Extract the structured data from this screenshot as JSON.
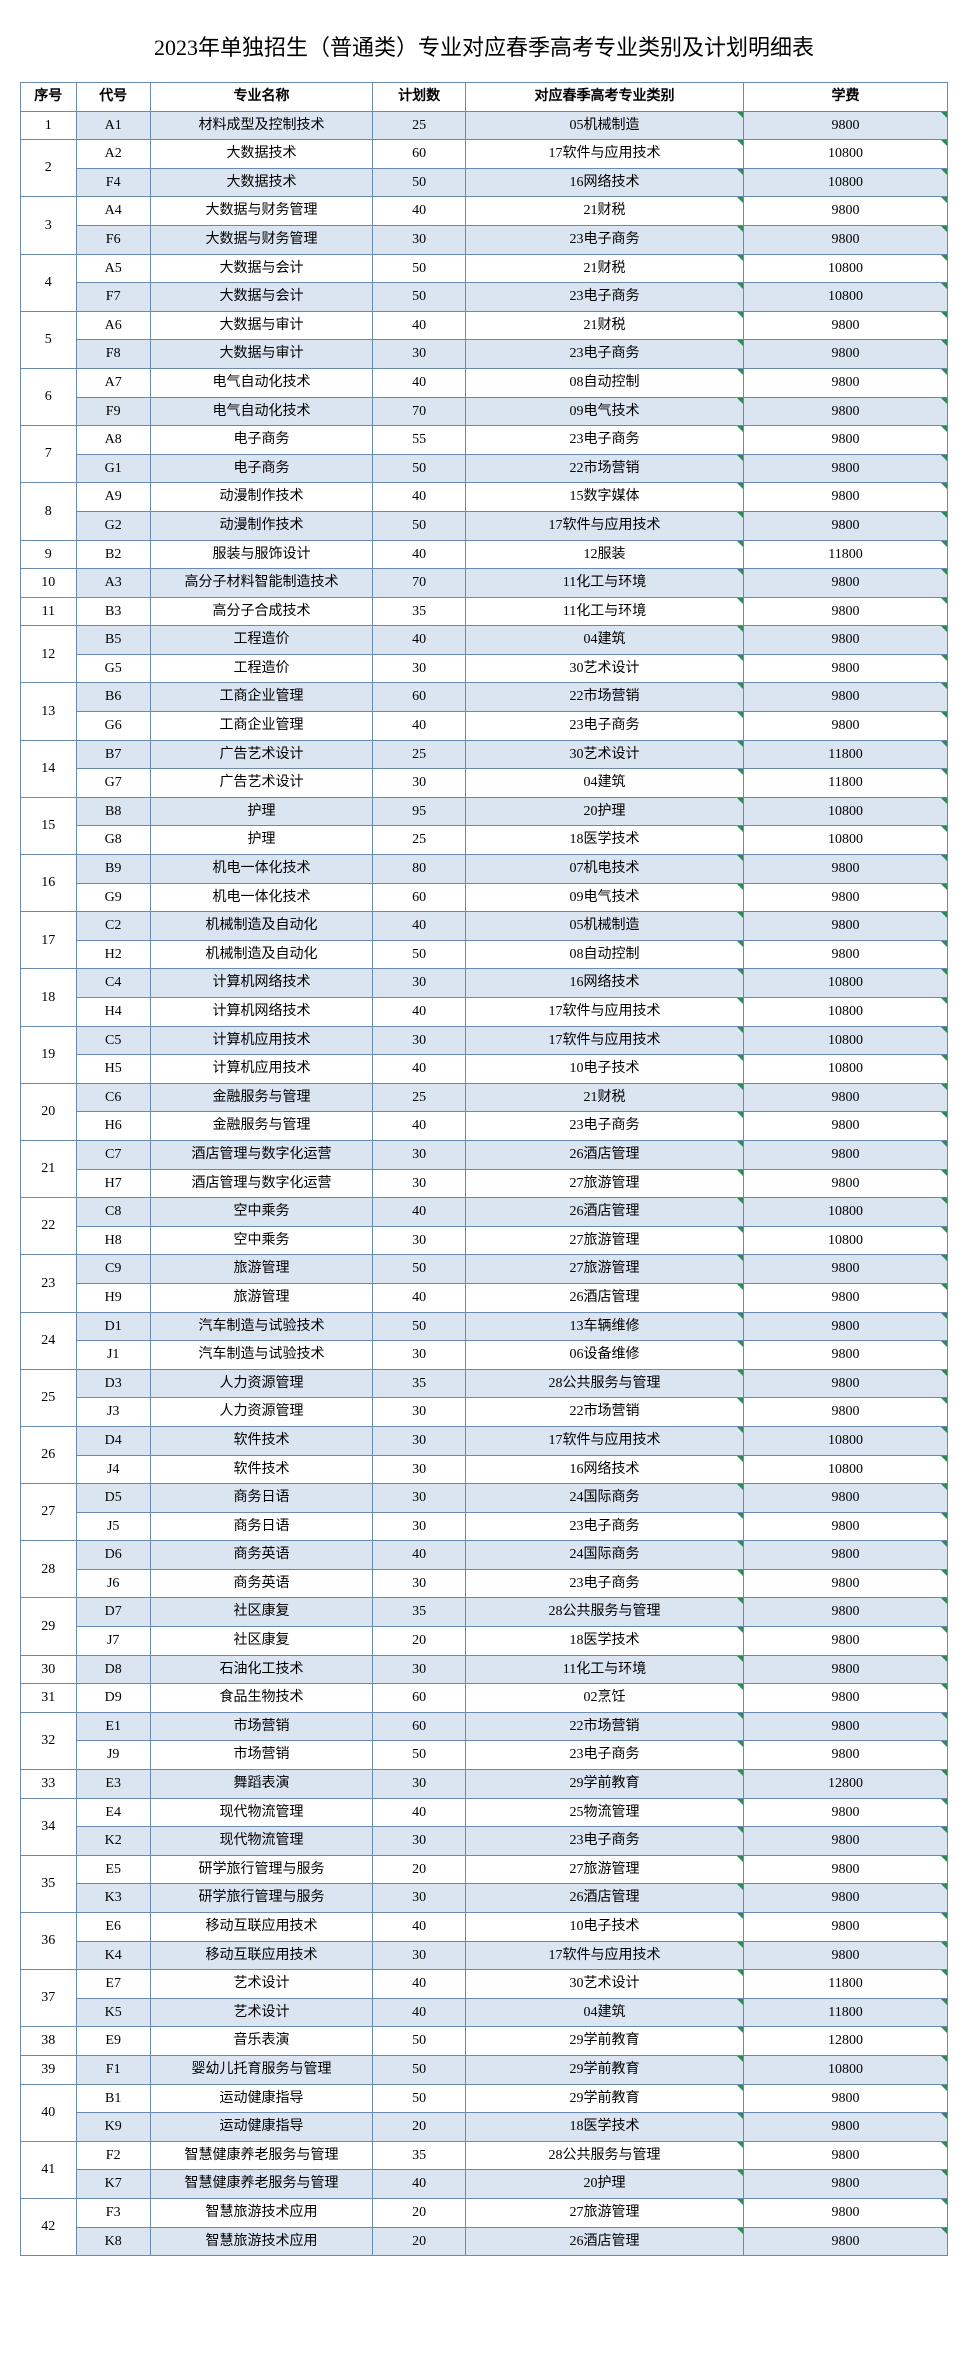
{
  "title": "2023年单独招生（普通类）专业对应春季高考专业类别及计划明细表",
  "columns": [
    "序号",
    "代号",
    "专业名称",
    "计划数",
    "对应春季高考专业类别",
    "学费"
  ],
  "rows": [
    {
      "seq": "1",
      "seqSpan": 1,
      "code": "A1",
      "name": "材料成型及控制技术",
      "plan": "25",
      "cat": "05机械制造",
      "fee": "9800",
      "blue": true
    },
    {
      "seq": "2",
      "seqSpan": 2,
      "code": "A2",
      "name": "大数据技术",
      "plan": "60",
      "cat": "17软件与应用技术",
      "fee": "10800",
      "blue": false
    },
    {
      "code": "F4",
      "name": "大数据技术",
      "plan": "50",
      "cat": "16网络技术",
      "fee": "10800",
      "blue": true
    },
    {
      "seq": "3",
      "seqSpan": 2,
      "code": "A4",
      "name": "大数据与财务管理",
      "plan": "40",
      "cat": "21财税",
      "fee": "9800",
      "blue": false
    },
    {
      "code": "F6",
      "name": "大数据与财务管理",
      "plan": "30",
      "cat": "23电子商务",
      "fee": "9800",
      "blue": true
    },
    {
      "seq": "4",
      "seqSpan": 2,
      "code": "A5",
      "name": "大数据与会计",
      "plan": "50",
      "cat": "21财税",
      "fee": "10800",
      "blue": false
    },
    {
      "code": "F7",
      "name": "大数据与会计",
      "plan": "50",
      "cat": "23电子商务",
      "fee": "10800",
      "blue": true
    },
    {
      "seq": "5",
      "seqSpan": 2,
      "code": "A6",
      "name": "大数据与审计",
      "plan": "40",
      "cat": "21财税",
      "fee": "9800",
      "blue": false
    },
    {
      "code": "F8",
      "name": "大数据与审计",
      "plan": "30",
      "cat": "23电子商务",
      "fee": "9800",
      "blue": true
    },
    {
      "seq": "6",
      "seqSpan": 2,
      "code": "A7",
      "name": "电气自动化技术",
      "plan": "40",
      "cat": "08自动控制",
      "fee": "9800",
      "blue": false
    },
    {
      "code": "F9",
      "name": "电气自动化技术",
      "plan": "70",
      "cat": "09电气技术",
      "fee": "9800",
      "blue": true
    },
    {
      "seq": "7",
      "seqSpan": 2,
      "code": "A8",
      "name": "电子商务",
      "plan": "55",
      "cat": "23电子商务",
      "fee": "9800",
      "blue": false
    },
    {
      "code": "G1",
      "name": "电子商务",
      "plan": "50",
      "cat": "22市场营销",
      "fee": "9800",
      "blue": true
    },
    {
      "seq": "8",
      "seqSpan": 2,
      "code": "A9",
      "name": "动漫制作技术",
      "plan": "40",
      "cat": "15数字媒体",
      "fee": "9800",
      "blue": false
    },
    {
      "code": "G2",
      "name": "动漫制作技术",
      "plan": "50",
      "cat": "17软件与应用技术",
      "fee": "9800",
      "blue": true
    },
    {
      "seq": "9",
      "seqSpan": 1,
      "code": "B2",
      "name": "服装与服饰设计",
      "plan": "40",
      "cat": "12服装",
      "fee": "11800",
      "blue": false
    },
    {
      "seq": "10",
      "seqSpan": 1,
      "code": "A3",
      "name": "高分子材料智能制造技术",
      "plan": "70",
      "cat": "11化工与环境",
      "fee": "9800",
      "blue": true
    },
    {
      "seq": "11",
      "seqSpan": 1,
      "code": "B3",
      "name": "高分子合成技术",
      "plan": "35",
      "cat": "11化工与环境",
      "fee": "9800",
      "blue": false
    },
    {
      "seq": "12",
      "seqSpan": 2,
      "code": "B5",
      "name": "工程造价",
      "plan": "40",
      "cat": "04建筑",
      "fee": "9800",
      "blue": true
    },
    {
      "code": "G5",
      "name": "工程造价",
      "plan": "30",
      "cat": "30艺术设计",
      "fee": "9800",
      "blue": false
    },
    {
      "seq": "13",
      "seqSpan": 2,
      "code": "B6",
      "name": "工商企业管理",
      "plan": "60",
      "cat": "22市场营销",
      "fee": "9800",
      "blue": true
    },
    {
      "code": "G6",
      "name": "工商企业管理",
      "plan": "40",
      "cat": "23电子商务",
      "fee": "9800",
      "blue": false
    },
    {
      "seq": "14",
      "seqSpan": 2,
      "code": "B7",
      "name": "广告艺术设计",
      "plan": "25",
      "cat": "30艺术设计",
      "fee": "11800",
      "blue": true
    },
    {
      "code": "G7",
      "name": "广告艺术设计",
      "plan": "30",
      "cat": "04建筑",
      "fee": "11800",
      "blue": false
    },
    {
      "seq": "15",
      "seqSpan": 2,
      "code": "B8",
      "name": "护理",
      "plan": "95",
      "cat": "20护理",
      "fee": "10800",
      "blue": true
    },
    {
      "code": "G8",
      "name": "护理",
      "plan": "25",
      "cat": "18医学技术",
      "fee": "10800",
      "blue": false
    },
    {
      "seq": "16",
      "seqSpan": 2,
      "code": "B9",
      "name": "机电一体化技术",
      "plan": "80",
      "cat": "07机电技术",
      "fee": "9800",
      "blue": true
    },
    {
      "code": "G9",
      "name": "机电一体化技术",
      "plan": "60",
      "cat": "09电气技术",
      "fee": "9800",
      "blue": false
    },
    {
      "seq": "17",
      "seqSpan": 2,
      "code": "C2",
      "name": "机械制造及自动化",
      "plan": "40",
      "cat": "05机械制造",
      "fee": "9800",
      "blue": true
    },
    {
      "code": "H2",
      "name": "机械制造及自动化",
      "plan": "50",
      "cat": "08自动控制",
      "fee": "9800",
      "blue": false
    },
    {
      "seq": "18",
      "seqSpan": 2,
      "code": "C4",
      "name": "计算机网络技术",
      "plan": "30",
      "cat": "16网络技术",
      "fee": "10800",
      "blue": true
    },
    {
      "code": "H4",
      "name": "计算机网络技术",
      "plan": "40",
      "cat": "17软件与应用技术",
      "fee": "10800",
      "blue": false
    },
    {
      "seq": "19",
      "seqSpan": 2,
      "code": "C5",
      "name": "计算机应用技术",
      "plan": "30",
      "cat": "17软件与应用技术",
      "fee": "10800",
      "blue": true
    },
    {
      "code": "H5",
      "name": "计算机应用技术",
      "plan": "40",
      "cat": "10电子技术",
      "fee": "10800",
      "blue": false
    },
    {
      "seq": "20",
      "seqSpan": 2,
      "code": "C6",
      "name": "金融服务与管理",
      "plan": "25",
      "cat": "21财税",
      "fee": "9800",
      "blue": true
    },
    {
      "code": "H6",
      "name": "金融服务与管理",
      "plan": "40",
      "cat": "23电子商务",
      "fee": "9800",
      "blue": false
    },
    {
      "seq": "21",
      "seqSpan": 2,
      "code": "C7",
      "name": "酒店管理与数字化运营",
      "plan": "30",
      "cat": "26酒店管理",
      "fee": "9800",
      "blue": true
    },
    {
      "code": "H7",
      "name": "酒店管理与数字化运营",
      "plan": "30",
      "cat": "27旅游管理",
      "fee": "9800",
      "blue": false
    },
    {
      "seq": "22",
      "seqSpan": 2,
      "code": "C8",
      "name": "空中乘务",
      "plan": "40",
      "cat": "26酒店管理",
      "fee": "10800",
      "blue": true
    },
    {
      "code": "H8",
      "name": "空中乘务",
      "plan": "30",
      "cat": "27旅游管理",
      "fee": "10800",
      "blue": false
    },
    {
      "seq": "23",
      "seqSpan": 2,
      "code": "C9",
      "name": "旅游管理",
      "plan": "50",
      "cat": "27旅游管理",
      "fee": "9800",
      "blue": true
    },
    {
      "code": "H9",
      "name": "旅游管理",
      "plan": "40",
      "cat": "26酒店管理",
      "fee": "9800",
      "blue": false
    },
    {
      "seq": "24",
      "seqSpan": 2,
      "code": "D1",
      "name": "汽车制造与试验技术",
      "plan": "50",
      "cat": "13车辆维修",
      "fee": "9800",
      "blue": true
    },
    {
      "code": "J1",
      "name": "汽车制造与试验技术",
      "plan": "30",
      "cat": "06设备维修",
      "fee": "9800",
      "blue": false
    },
    {
      "seq": "25",
      "seqSpan": 2,
      "code": "D3",
      "name": "人力资源管理",
      "plan": "35",
      "cat": "28公共服务与管理",
      "fee": "9800",
      "blue": true
    },
    {
      "code": "J3",
      "name": "人力资源管理",
      "plan": "30",
      "cat": "22市场营销",
      "fee": "9800",
      "blue": false
    },
    {
      "seq": "26",
      "seqSpan": 2,
      "code": "D4",
      "name": "软件技术",
      "plan": "30",
      "cat": "17软件与应用技术",
      "fee": "10800",
      "blue": true
    },
    {
      "code": "J4",
      "name": "软件技术",
      "plan": "30",
      "cat": "16网络技术",
      "fee": "10800",
      "blue": false
    },
    {
      "seq": "27",
      "seqSpan": 2,
      "code": "D5",
      "name": "商务日语",
      "plan": "30",
      "cat": "24国际商务",
      "fee": "9800",
      "blue": true
    },
    {
      "code": "J5",
      "name": "商务日语",
      "plan": "30",
      "cat": "23电子商务",
      "fee": "9800",
      "blue": false
    },
    {
      "seq": "28",
      "seqSpan": 2,
      "code": "D6",
      "name": "商务英语",
      "plan": "40",
      "cat": "24国际商务",
      "fee": "9800",
      "blue": true
    },
    {
      "code": "J6",
      "name": "商务英语",
      "plan": "30",
      "cat": "23电子商务",
      "fee": "9800",
      "blue": false
    },
    {
      "seq": "29",
      "seqSpan": 2,
      "code": "D7",
      "name": "社区康复",
      "plan": "35",
      "cat": "28公共服务与管理",
      "fee": "9800",
      "blue": true
    },
    {
      "code": "J7",
      "name": "社区康复",
      "plan": "20",
      "cat": "18医学技术",
      "fee": "9800",
      "blue": false
    },
    {
      "seq": "30",
      "seqSpan": 1,
      "code": "D8",
      "name": "石油化工技术",
      "plan": "30",
      "cat": "11化工与环境",
      "fee": "9800",
      "blue": true
    },
    {
      "seq": "31",
      "seqSpan": 1,
      "code": "D9",
      "name": "食品生物技术",
      "plan": "60",
      "cat": "02烹饪",
      "fee": "9800",
      "blue": false
    },
    {
      "seq": "32",
      "seqSpan": 2,
      "code": "E1",
      "name": "市场营销",
      "plan": "60",
      "cat": "22市场营销",
      "fee": "9800",
      "blue": true
    },
    {
      "code": "J9",
      "name": "市场营销",
      "plan": "50",
      "cat": "23电子商务",
      "fee": "9800",
      "blue": false
    },
    {
      "seq": "33",
      "seqSpan": 1,
      "code": "E3",
      "name": "舞蹈表演",
      "plan": "30",
      "cat": "29学前教育",
      "fee": "12800",
      "blue": true
    },
    {
      "seq": "34",
      "seqSpan": 2,
      "code": "E4",
      "name": "现代物流管理",
      "plan": "40",
      "cat": "25物流管理",
      "fee": "9800",
      "blue": false
    },
    {
      "code": "K2",
      "name": "现代物流管理",
      "plan": "30",
      "cat": "23电子商务",
      "fee": "9800",
      "blue": true
    },
    {
      "seq": "35",
      "seqSpan": 2,
      "code": "E5",
      "name": "研学旅行管理与服务",
      "plan": "20",
      "cat": "27旅游管理",
      "fee": "9800",
      "blue": false
    },
    {
      "code": "K3",
      "name": "研学旅行管理与服务",
      "plan": "30",
      "cat": "26酒店管理",
      "fee": "9800",
      "blue": true
    },
    {
      "seq": "36",
      "seqSpan": 2,
      "code": "E6",
      "name": "移动互联应用技术",
      "plan": "40",
      "cat": "10电子技术",
      "fee": "9800",
      "blue": false
    },
    {
      "code": "K4",
      "name": "移动互联应用技术",
      "plan": "30",
      "cat": "17软件与应用技术",
      "fee": "9800",
      "blue": true
    },
    {
      "seq": "37",
      "seqSpan": 2,
      "code": "E7",
      "name": "艺术设计",
      "plan": "40",
      "cat": "30艺术设计",
      "fee": "11800",
      "blue": false
    },
    {
      "code": "K5",
      "name": "艺术设计",
      "plan": "40",
      "cat": "04建筑",
      "fee": "11800",
      "blue": true
    },
    {
      "seq": "38",
      "seqSpan": 1,
      "code": "E9",
      "name": "音乐表演",
      "plan": "50",
      "cat": "29学前教育",
      "fee": "12800",
      "blue": false
    },
    {
      "seq": "39",
      "seqSpan": 1,
      "code": "F1",
      "name": "婴幼儿托育服务与管理",
      "plan": "50",
      "cat": "29学前教育",
      "fee": "10800",
      "blue": true
    },
    {
      "seq": "40",
      "seqSpan": 2,
      "code": "B1",
      "name": "运动健康指导",
      "plan": "50",
      "cat": "29学前教育",
      "fee": "9800",
      "blue": false
    },
    {
      "code": "K9",
      "name": "运动健康指导",
      "plan": "20",
      "cat": "18医学技术",
      "fee": "9800",
      "blue": true
    },
    {
      "seq": "41",
      "seqSpan": 2,
      "code": "F2",
      "name": "智慧健康养老服务与管理",
      "plan": "35",
      "cat": "28公共服务与管理",
      "fee": "9800",
      "blue": false
    },
    {
      "code": "K7",
      "name": "智慧健康养老服务与管理",
      "plan": "40",
      "cat": "20护理",
      "fee": "9800",
      "blue": true
    },
    {
      "seq": "42",
      "seqSpan": 2,
      "code": "F3",
      "name": "智慧旅游技术应用",
      "plan": "20",
      "cat": "27旅游管理",
      "fee": "9800",
      "blue": false
    },
    {
      "code": "K8",
      "name": "智慧旅游技术应用",
      "plan": "20",
      "cat": "26酒店管理",
      "fee": "9800",
      "blue": true
    }
  ]
}
